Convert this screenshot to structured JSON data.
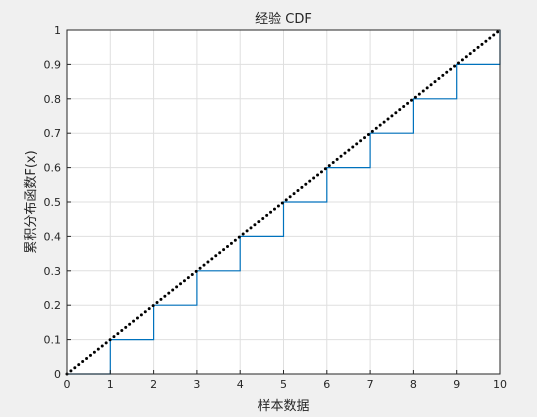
{
  "chart_data": {
    "type": "line",
    "title": "经验 CDF",
    "xlabel": "样本数据",
    "ylabel": "累积分布函数F(x)",
    "xlim": [
      0,
      10
    ],
    "ylim": [
      0,
      1
    ],
    "grid": true,
    "xticks": [
      0,
      1,
      2,
      3,
      4,
      5,
      6,
      7,
      8,
      9,
      10
    ],
    "yticks": [
      0,
      0.1,
      0.2,
      0.3,
      0.4,
      0.5,
      0.6,
      0.7,
      0.8,
      0.9,
      1
    ],
    "xtick_labels": [
      "0",
      "1",
      "2",
      "3",
      "4",
      "5",
      "6",
      "7",
      "8",
      "9",
      "10"
    ],
    "ytick_labels": [
      "0",
      "0.1",
      "0.2",
      "0.3",
      "0.4",
      "0.5",
      "0.6",
      "0.7",
      "0.8",
      "0.9",
      "1"
    ],
    "series": [
      {
        "style": "stairs",
        "color": "#0072bd",
        "x": [
          0,
          1,
          1,
          2,
          2,
          3,
          3,
          4,
          4,
          5,
          5,
          6,
          6,
          7,
          7,
          8,
          8,
          9,
          9,
          10,
          10
        ],
        "y": [
          0,
          0,
          0.1,
          0.1,
          0.2,
          0.2,
          0.3,
          0.3,
          0.4,
          0.4,
          0.5,
          0.5,
          0.6,
          0.6,
          0.7,
          0.7,
          0.8,
          0.8,
          0.9,
          0.9,
          1
        ]
      },
      {
        "style": "dotted",
        "color": "#000000",
        "x": [
          0,
          10
        ],
        "y": [
          0,
          1
        ]
      }
    ]
  }
}
